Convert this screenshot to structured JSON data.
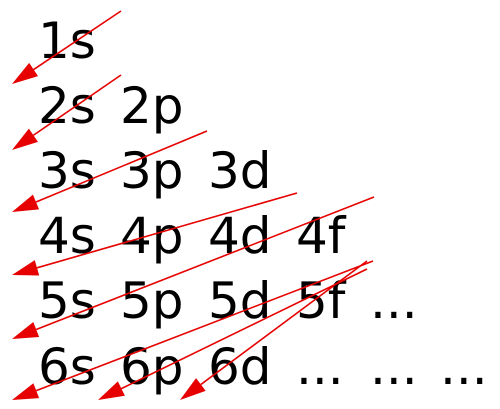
{
  "rows": [
    [
      "1s"
    ],
    [
      "2s",
      "2p"
    ],
    [
      "3s",
      "3p",
      "3d"
    ],
    [
      "4s",
      "4p",
      "4d",
      "4f"
    ],
    [
      "5s",
      "5p",
      "5d",
      "5f",
      "..."
    ],
    [
      "6s",
      "6p",
      "6d",
      "...",
      "...",
      "..."
    ]
  ],
  "colors": {
    "text": "#000000",
    "arrow": "#e60000"
  },
  "icons": {
    "arrow": "diagonal-arrow-icon"
  }
}
